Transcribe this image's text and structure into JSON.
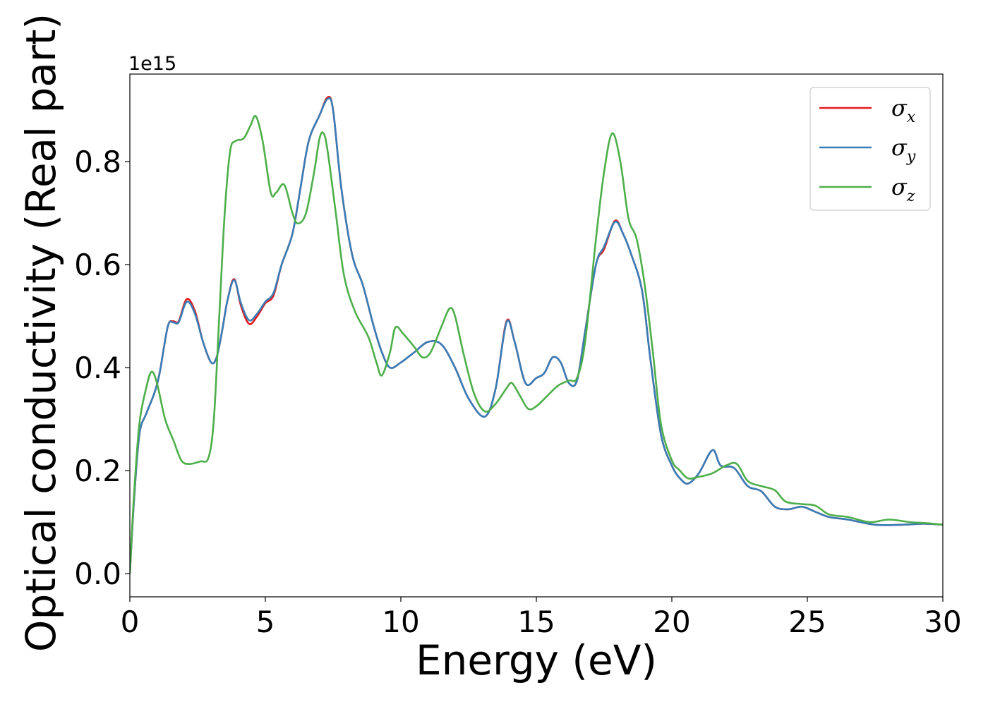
{
  "chart_data": {
    "type": "line",
    "xlabel": "Energy (eV)",
    "ylabel": "Optical conductivity (Real part)",
    "offset_text": "1e15",
    "xlim": [
      0,
      30
    ],
    "ylim": [
      -0.045,
      0.97
    ],
    "x_ticks": [
      0,
      5,
      10,
      15,
      20,
      25,
      30
    ],
    "y_ticks": [
      0.0,
      0.2,
      0.4,
      0.6,
      0.8
    ],
    "x_tick_labels": [
      "0",
      "5",
      "10",
      "15",
      "20",
      "25",
      "30"
    ],
    "y_tick_labels": [
      "0.0",
      "0.2",
      "0.4",
      "0.6",
      "0.8"
    ],
    "legend_position": "top-right",
    "grid": false,
    "series": [
      {
        "name": "σx",
        "symbol": "σ",
        "subscript": "x",
        "color": "#e41a1c",
        "points": [
          [
            0,
            0.0
          ],
          [
            0.15,
            0.14
          ],
          [
            0.35,
            0.27
          ],
          [
            0.6,
            0.31
          ],
          [
            0.9,
            0.35
          ],
          [
            1.1,
            0.39
          ],
          [
            1.4,
            0.48
          ],
          [
            1.6,
            0.49
          ],
          [
            1.8,
            0.49
          ],
          [
            2.1,
            0.533
          ],
          [
            2.4,
            0.51
          ],
          [
            2.7,
            0.45
          ],
          [
            3.0,
            0.41
          ],
          [
            3.2,
            0.42
          ],
          [
            3.4,
            0.47
          ],
          [
            3.6,
            0.53
          ],
          [
            3.85,
            0.572
          ],
          [
            4.1,
            0.52
          ],
          [
            4.4,
            0.485
          ],
          [
            4.7,
            0.5
          ],
          [
            5.0,
            0.525
          ],
          [
            5.3,
            0.54
          ],
          [
            5.6,
            0.6
          ],
          [
            6.0,
            0.66
          ],
          [
            6.3,
            0.75
          ],
          [
            6.6,
            0.84
          ],
          [
            7.0,
            0.89
          ],
          [
            7.3,
            0.925
          ],
          [
            7.5,
            0.9
          ],
          [
            7.8,
            0.75
          ],
          [
            8.2,
            0.62
          ],
          [
            8.6,
            0.56
          ],
          [
            9.0,
            0.48
          ],
          [
            9.3,
            0.43
          ],
          [
            9.6,
            0.4
          ],
          [
            10.0,
            0.41
          ],
          [
            10.5,
            0.43
          ],
          [
            11.0,
            0.45
          ],
          [
            11.5,
            0.445
          ],
          [
            12.0,
            0.4
          ],
          [
            12.5,
            0.34
          ],
          [
            13.1,
            0.305
          ],
          [
            13.5,
            0.36
          ],
          [
            13.9,
            0.49
          ],
          [
            14.2,
            0.45
          ],
          [
            14.6,
            0.37
          ],
          [
            15.0,
            0.38
          ],
          [
            15.3,
            0.39
          ],
          [
            15.6,
            0.42
          ],
          [
            15.9,
            0.41
          ],
          [
            16.2,
            0.37
          ],
          [
            16.5,
            0.375
          ],
          [
            16.8,
            0.47
          ],
          [
            17.2,
            0.6
          ],
          [
            17.5,
            0.63
          ],
          [
            17.9,
            0.685
          ],
          [
            18.2,
            0.66
          ],
          [
            18.5,
            0.62
          ],
          [
            18.9,
            0.55
          ],
          [
            19.2,
            0.42
          ],
          [
            19.6,
            0.27
          ],
          [
            20.0,
            0.21
          ],
          [
            20.3,
            0.185
          ],
          [
            20.6,
            0.175
          ],
          [
            21.0,
            0.195
          ],
          [
            21.5,
            0.24
          ],
          [
            21.8,
            0.21
          ],
          [
            22.3,
            0.205
          ],
          [
            22.8,
            0.17
          ],
          [
            23.3,
            0.16
          ],
          [
            23.8,
            0.13
          ],
          [
            24.3,
            0.125
          ],
          [
            24.8,
            0.13
          ],
          [
            25.3,
            0.12
          ],
          [
            25.8,
            0.11
          ],
          [
            26.5,
            0.105
          ],
          [
            27.5,
            0.095
          ],
          [
            28.5,
            0.095
          ],
          [
            29.3,
            0.097
          ],
          [
            30,
            0.095
          ]
        ]
      },
      {
        "name": "σy",
        "symbol": "σ",
        "subscript": "y",
        "color": "#377eb8",
        "points": [
          [
            0,
            0.0
          ],
          [
            0.15,
            0.14
          ],
          [
            0.35,
            0.27
          ],
          [
            0.6,
            0.31
          ],
          [
            0.9,
            0.35
          ],
          [
            1.1,
            0.39
          ],
          [
            1.4,
            0.48
          ],
          [
            1.6,
            0.488
          ],
          [
            1.8,
            0.488
          ],
          [
            2.1,
            0.528
          ],
          [
            2.4,
            0.505
          ],
          [
            2.7,
            0.45
          ],
          [
            3.0,
            0.41
          ],
          [
            3.2,
            0.42
          ],
          [
            3.4,
            0.47
          ],
          [
            3.6,
            0.53
          ],
          [
            3.85,
            0.57
          ],
          [
            4.1,
            0.525
          ],
          [
            4.4,
            0.492
          ],
          [
            4.7,
            0.505
          ],
          [
            5.0,
            0.528
          ],
          [
            5.3,
            0.545
          ],
          [
            5.6,
            0.6
          ],
          [
            6.0,
            0.66
          ],
          [
            6.3,
            0.75
          ],
          [
            6.6,
            0.84
          ],
          [
            7.0,
            0.89
          ],
          [
            7.3,
            0.922
          ],
          [
            7.5,
            0.9
          ],
          [
            7.8,
            0.75
          ],
          [
            8.2,
            0.62
          ],
          [
            8.6,
            0.56
          ],
          [
            9.0,
            0.48
          ],
          [
            9.3,
            0.43
          ],
          [
            9.6,
            0.4
          ],
          [
            10.0,
            0.41
          ],
          [
            10.5,
            0.43
          ],
          [
            11.0,
            0.45
          ],
          [
            11.5,
            0.445
          ],
          [
            12.0,
            0.4
          ],
          [
            12.5,
            0.34
          ],
          [
            13.1,
            0.305
          ],
          [
            13.5,
            0.36
          ],
          [
            13.9,
            0.488
          ],
          [
            14.2,
            0.45
          ],
          [
            14.6,
            0.37
          ],
          [
            15.0,
            0.38
          ],
          [
            15.3,
            0.39
          ],
          [
            15.6,
            0.42
          ],
          [
            15.9,
            0.41
          ],
          [
            16.2,
            0.37
          ],
          [
            16.5,
            0.375
          ],
          [
            16.8,
            0.47
          ],
          [
            17.2,
            0.6
          ],
          [
            17.5,
            0.635
          ],
          [
            17.9,
            0.683
          ],
          [
            18.2,
            0.66
          ],
          [
            18.5,
            0.62
          ],
          [
            18.9,
            0.55
          ],
          [
            19.2,
            0.42
          ],
          [
            19.6,
            0.27
          ],
          [
            20.0,
            0.21
          ],
          [
            20.3,
            0.185
          ],
          [
            20.6,
            0.175
          ],
          [
            21.0,
            0.195
          ],
          [
            21.5,
            0.24
          ],
          [
            21.8,
            0.21
          ],
          [
            22.3,
            0.205
          ],
          [
            22.8,
            0.17
          ],
          [
            23.3,
            0.16
          ],
          [
            23.8,
            0.13
          ],
          [
            24.3,
            0.125
          ],
          [
            24.8,
            0.13
          ],
          [
            25.3,
            0.12
          ],
          [
            25.8,
            0.11
          ],
          [
            26.5,
            0.105
          ],
          [
            27.5,
            0.095
          ],
          [
            28.5,
            0.095
          ],
          [
            29.3,
            0.097
          ],
          [
            30,
            0.095
          ]
        ]
      },
      {
        "name": "σz",
        "symbol": "σ",
        "subscript": "z",
        "color": "#4daf4a",
        "points": [
          [
            0,
            0.0
          ],
          [
            0.15,
            0.15
          ],
          [
            0.35,
            0.29
          ],
          [
            0.6,
            0.36
          ],
          [
            0.8,
            0.392
          ],
          [
            1.0,
            0.37
          ],
          [
            1.3,
            0.3
          ],
          [
            1.6,
            0.26
          ],
          [
            1.9,
            0.22
          ],
          [
            2.2,
            0.213
          ],
          [
            2.6,
            0.218
          ],
          [
            2.9,
            0.225
          ],
          [
            3.1,
            0.3
          ],
          [
            3.3,
            0.5
          ],
          [
            3.5,
            0.7
          ],
          [
            3.7,
            0.82
          ],
          [
            3.9,
            0.84
          ],
          [
            4.2,
            0.845
          ],
          [
            4.45,
            0.87
          ],
          [
            4.65,
            0.888
          ],
          [
            4.9,
            0.84
          ],
          [
            5.2,
            0.74
          ],
          [
            5.4,
            0.74
          ],
          [
            5.7,
            0.755
          ],
          [
            6.0,
            0.7
          ],
          [
            6.2,
            0.68
          ],
          [
            6.5,
            0.7
          ],
          [
            6.8,
            0.78
          ],
          [
            7.0,
            0.845
          ],
          [
            7.15,
            0.855
          ],
          [
            7.3,
            0.82
          ],
          [
            7.6,
            0.7
          ],
          [
            7.9,
            0.58
          ],
          [
            8.3,
            0.51
          ],
          [
            8.8,
            0.46
          ],
          [
            9.1,
            0.41
          ],
          [
            9.3,
            0.385
          ],
          [
            9.6,
            0.43
          ],
          [
            9.8,
            0.478
          ],
          [
            10.1,
            0.465
          ],
          [
            10.5,
            0.44
          ],
          [
            10.8,
            0.42
          ],
          [
            11.1,
            0.43
          ],
          [
            11.5,
            0.48
          ],
          [
            11.8,
            0.515
          ],
          [
            12.0,
            0.5
          ],
          [
            12.3,
            0.43
          ],
          [
            12.7,
            0.35
          ],
          [
            13.1,
            0.315
          ],
          [
            13.5,
            0.33
          ],
          [
            13.9,
            0.36
          ],
          [
            14.1,
            0.37
          ],
          [
            14.4,
            0.345
          ],
          [
            14.7,
            0.32
          ],
          [
            15.0,
            0.325
          ],
          [
            15.4,
            0.345
          ],
          [
            15.8,
            0.365
          ],
          [
            16.2,
            0.375
          ],
          [
            16.5,
            0.38
          ],
          [
            16.8,
            0.45
          ],
          [
            17.2,
            0.65
          ],
          [
            17.5,
            0.78
          ],
          [
            17.8,
            0.855
          ],
          [
            18.1,
            0.8
          ],
          [
            18.4,
            0.69
          ],
          [
            18.7,
            0.65
          ],
          [
            19.0,
            0.56
          ],
          [
            19.3,
            0.43
          ],
          [
            19.6,
            0.29
          ],
          [
            20.0,
            0.22
          ],
          [
            20.3,
            0.2
          ],
          [
            20.6,
            0.185
          ],
          [
            21.0,
            0.188
          ],
          [
            21.5,
            0.195
          ],
          [
            22.0,
            0.21
          ],
          [
            22.4,
            0.213
          ],
          [
            22.8,
            0.18
          ],
          [
            23.3,
            0.17
          ],
          [
            23.8,
            0.162
          ],
          [
            24.2,
            0.14
          ],
          [
            24.8,
            0.135
          ],
          [
            25.3,
            0.132
          ],
          [
            25.8,
            0.115
          ],
          [
            26.5,
            0.11
          ],
          [
            27.3,
            0.1
          ],
          [
            28.0,
            0.105
          ],
          [
            28.8,
            0.1
          ],
          [
            29.4,
            0.098
          ],
          [
            30,
            0.095
          ]
        ]
      }
    ]
  }
}
